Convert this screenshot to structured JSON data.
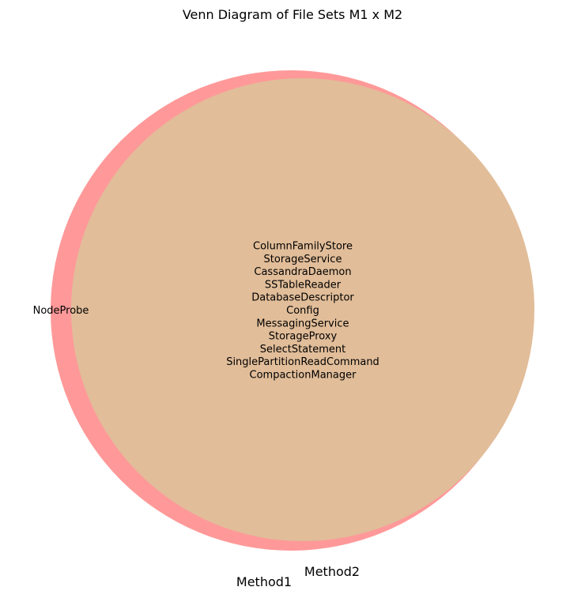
{
  "chart_data": {
    "type": "venn",
    "title": "Venn Diagram of File Sets M1 x M2",
    "sets": [
      {
        "name": "Method1",
        "color": "#ff9999"
      },
      {
        "name": "Method2",
        "color": "#e1bd99"
      }
    ],
    "regions": {
      "only_method1": [
        "NodeProbe"
      ],
      "only_method2": [],
      "intersection": [
        "ColumnFamilyStore",
        "StorageService",
        "CassandraDaemon",
        "SSTableReader",
        "DatabaseDescriptor",
        "Config",
        "MessagingService",
        "StorageProxy",
        "SelectStatement",
        "SinglePartitionReadCommand",
        "CompactionManager"
      ]
    }
  }
}
